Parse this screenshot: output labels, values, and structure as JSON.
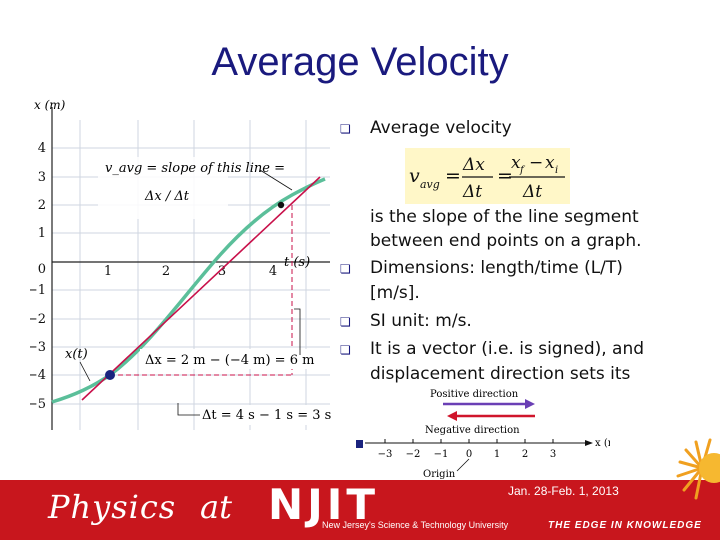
{
  "title": "Average Velocity",
  "graph": {
    "y_axis_label": "x (m)",
    "x_axis_label": "t (s)",
    "y_ticks": [
      "4",
      "3",
      "2",
      "1",
      "0",
      "−1",
      "−2",
      "−3",
      "−4",
      "−5"
    ],
    "x_ticks": [
      "1",
      "2",
      "3",
      "4"
    ],
    "annotation_vavg": "v_avg = slope of this line =",
    "annotation_frac": "Δx / Δt",
    "curve_label": "x(t)",
    "dx_label": "Δx = 2 m − (−4 m) = 6 m",
    "dt_label": "Δt = 4 s − 1 s = 3 s",
    "curve_color": "#5bbf9a",
    "line_color": "#c8104a",
    "point_color": "#1a237e"
  },
  "bullets": {
    "b1": "Average velocity",
    "b1_cont1": "is the slope of the line segment",
    "b1_cont2": "between end points on a graph.",
    "b2": "Dimensions: length/time (L/T)",
    "b2_cont": "[m/s].",
    "b3": "SI unit: m/s.",
    "b4": "It is a vector (i.e. is signed), and",
    "b4_cont1": "displacement direction sets its"
  },
  "formula": {
    "lhs": "v",
    "lhs_sub": "avg",
    "dx": "Δx",
    "dt": "Δt",
    "xf": "x",
    "xf_sub": "f",
    "xi": "x",
    "xi_sub": "i"
  },
  "direction_axis": {
    "positive": "Positive direction",
    "negative": "Negative direction",
    "axis_label": "x (m)",
    "ticks": [
      "−3",
      "−2",
      "−1",
      "0",
      "1",
      "2",
      "3"
    ],
    "origin": "Origin"
  },
  "footer": {
    "physics": "Physics",
    "at": "at",
    "njit": "NJIT",
    "tagline": "New Jersey's Science & Technology University",
    "edge": "THE EDGE IN KNOWLEDGE",
    "date": "Jan. 28-Feb. 1, 2013",
    "bg_color": "#c8161d"
  }
}
